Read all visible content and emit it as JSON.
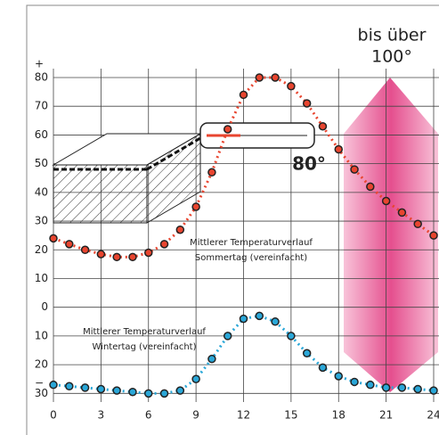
{
  "chart_data": {
    "type": "line",
    "x": [
      0,
      1,
      2,
      3,
      4,
      5,
      6,
      7,
      8,
      9,
      10,
      11,
      12,
      13,
      14,
      15,
      16,
      17,
      18,
      19,
      20,
      21,
      22,
      23,
      24
    ],
    "series": [
      {
        "color": "#e8452f",
        "values": [
          24,
          22,
          20,
          18.5,
          17.5,
          17.5,
          19,
          22,
          27,
          35,
          47,
          62,
          74,
          80,
          80,
          77,
          71,
          63,
          55,
          48,
          42,
          37,
          33,
          29,
          25
        ]
      },
      {
        "color": "#2aa7d8",
        "values": [
          -27,
          -27.5,
          -28,
          -28.5,
          -29,
          -29.5,
          -30,
          -30,
          -29,
          -25,
          -18,
          -10,
          -4,
          -3,
          -5,
          -10,
          -16,
          -21,
          -24,
          -26,
          -27,
          -28,
          -28,
          -28.5,
          -29
        ]
      }
    ],
    "xlim": [
      0,
      24
    ],
    "xticks": [
      0,
      3,
      6,
      9,
      12,
      15,
      18,
      21,
      24
    ],
    "ylim": [
      -33,
      80
    ],
    "yticks": [
      80,
      70,
      60,
      50,
      40,
      30,
      20,
      10,
      0,
      {
        "value": -10,
        "label": "10"
      },
      {
        "value": -20,
        "label": "20"
      },
      {
        "value": -30,
        "label": "30"
      }
    ],
    "grid": true,
    "annotations": [
      "bis über",
      "100°",
      "80°",
      "Mittlerer Temperaturverlauf",
      "Sommertag (vereinfacht)",
      "Mittlerer Temperaturverlauf",
      "Wintertag (vereinfacht)",
      "+",
      "−"
    ]
  }
}
